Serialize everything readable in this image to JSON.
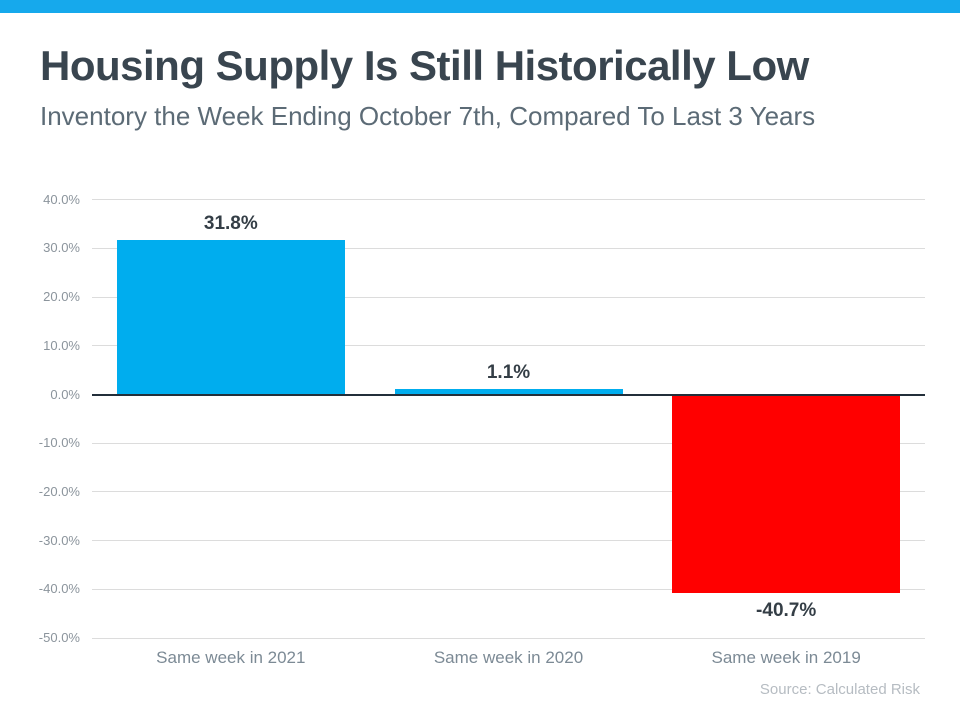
{
  "chart_data": {
    "type": "bar",
    "title": "Housing Supply Is Still Historically Low",
    "subtitle": "Inventory the Week Ending October 7th, Compared To Last 3 Years",
    "categories": [
      "Same week in 2021",
      "Same week in 2020",
      "Same week in 2019"
    ],
    "values": [
      31.8,
      1.1,
      -40.7
    ],
    "value_labels": [
      "31.8%",
      "1.1%",
      "-40.7%"
    ],
    "bar_colors": [
      "#00adee",
      "#00adee",
      "#ff0000"
    ],
    "yticks": [
      {
        "value": 40,
        "label": "40.0%"
      },
      {
        "value": 30,
        "label": "30.0%"
      },
      {
        "value": 20,
        "label": "20.0%"
      },
      {
        "value": 10,
        "label": "10.0%"
      },
      {
        "value": 0,
        "label": "0.0%"
      },
      {
        "value": -10,
        "label": "-10.0%"
      },
      {
        "value": -20,
        "label": "-20.0%"
      },
      {
        "value": -30,
        "label": "-30.0%"
      },
      {
        "value": -40,
        "label": "-40.0%"
      },
      {
        "value": -50,
        "label": "-50.0%"
      }
    ],
    "ylim": [
      -50,
      40
    ],
    "grid": true,
    "legend": false,
    "xlabel": "",
    "ylabel": "",
    "source": "Source: Calculated Risk",
    "colors": {
      "accent_bar": "#16a9ec",
      "title": "#39454f",
      "subtitle": "#5c6b76",
      "gridline": "#dcdcdc",
      "zero_line": "#232f3a",
      "tick_label": "#8b949c",
      "category_label": "#7c8a95",
      "value_label": "#343e46",
      "source": "#b6bcc2"
    }
  }
}
